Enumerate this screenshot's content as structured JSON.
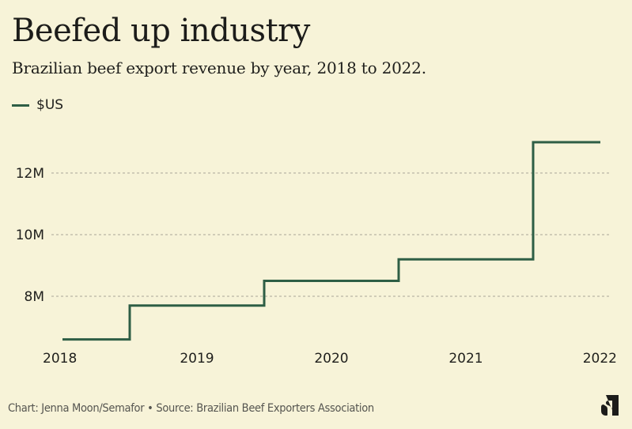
{
  "header": {
    "title": "Beefed up industry",
    "subtitle": "Brazilian beef export revenue by year, 2018 to 2022."
  },
  "legend": {
    "label": "$US",
    "color": "#2e5e45"
  },
  "footer": {
    "credit": "Chart: Jenna Moon/Semafor • Source: Brazilian Beef Exporters Association",
    "logo_icon": "semafor-logo-icon"
  },
  "chart_data": {
    "type": "line",
    "subtype": "step",
    "title": "Beefed up industry",
    "subtitle": "Brazilian beef export revenue by year, 2018 to 2022.",
    "xlabel": "",
    "ylabel": "",
    "categories": [
      "2018",
      "2019",
      "2020",
      "2021",
      "2022"
    ],
    "series": [
      {
        "name": "$US",
        "color": "#2e5e45",
        "values": [
          6600000,
          7700000,
          8500000,
          9200000,
          13000000
        ]
      }
    ],
    "yticks": [
      8000000,
      10000000,
      12000000
    ],
    "ytick_labels": [
      "8M",
      "10M",
      "12M"
    ],
    "ylim": [
      6000000,
      13500000
    ],
    "grid": true,
    "grid_style": "dotted horizontal",
    "legend_position": "top-left"
  }
}
